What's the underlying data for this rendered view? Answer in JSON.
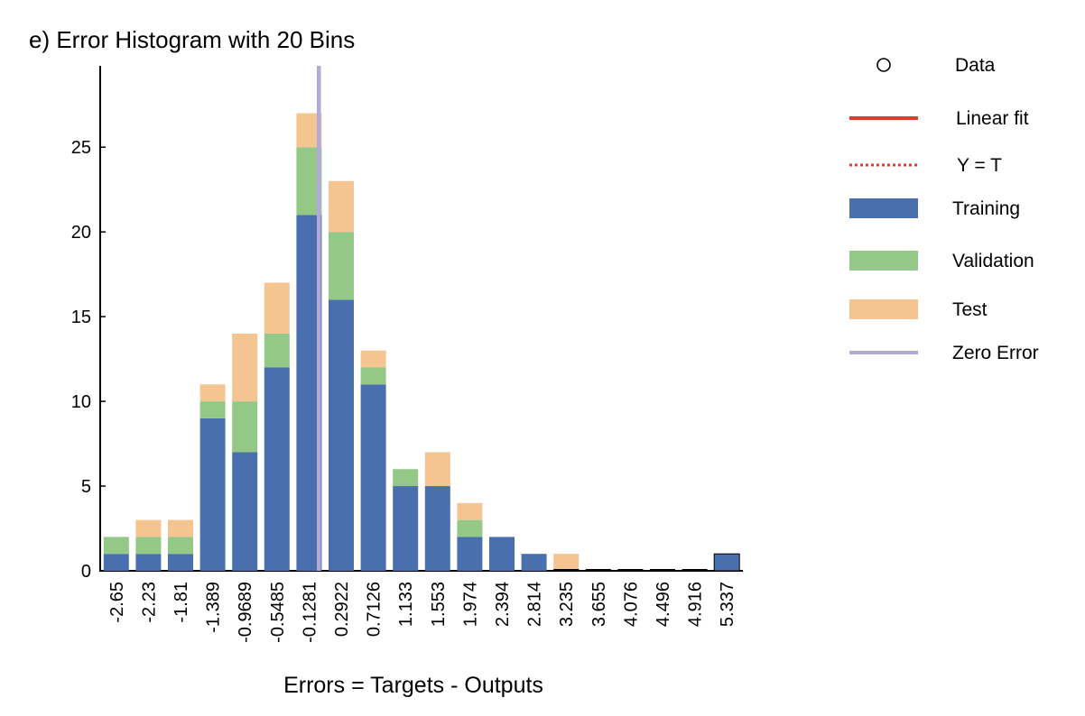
{
  "chart_data": {
    "type": "bar",
    "stacked": true,
    "title": "e) Error Histogram with 20 Bins",
    "xlabel": "Errors = Targets - Outputs",
    "ylabel": "",
    "ylim": [
      0,
      29.8
    ],
    "yticks": [
      0,
      5,
      10,
      15,
      20,
      25
    ],
    "grid": false,
    "legend_position": "right",
    "categories": [
      "-2.65",
      "-2.23",
      "-1.81",
      "-1.389",
      "-0.9689",
      "-0.5485",
      "-0.1281",
      "0.2922",
      "0.7126",
      "1.133",
      "1.553",
      "1.974",
      "2.394",
      "2.814",
      "3.235",
      "3.655",
      "4.076",
      "4.496",
      "4.916",
      "5.337"
    ],
    "series": [
      {
        "name": "Training",
        "color": "#4a6fae",
        "values": [
          1,
          1,
          1,
          9,
          7,
          12,
          21,
          16,
          11,
          5,
          5,
          2,
          2,
          1,
          0,
          0,
          0,
          0,
          0,
          1
        ]
      },
      {
        "name": "Validation",
        "color": "#93c887",
        "values": [
          1,
          1,
          1,
          1,
          3,
          2,
          4,
          4,
          1,
          1,
          0,
          1,
          0,
          0,
          0,
          0,
          0,
          0,
          0,
          0
        ]
      },
      {
        "name": "Test",
        "color": "#f4c491",
        "values": [
          0,
          1,
          1,
          1,
          4,
          3,
          2,
          3,
          1,
          0,
          2,
          1,
          0,
          0,
          1,
          0,
          0,
          0,
          0,
          0
        ]
      }
    ],
    "zero_error": {
      "name": "Zero Error",
      "x": 0,
      "color": "#b3a9d6"
    },
    "legend": [
      {
        "label": "Data",
        "marker": "circle"
      },
      {
        "label": "Linear fit",
        "marker": "line",
        "color": "#e43a2c"
      },
      {
        "label": "Y = T",
        "marker": "dotted-line",
        "color": "#e43a2c"
      },
      {
        "label": "Training",
        "marker": "box",
        "color": "#4a6fae"
      },
      {
        "label": "Validation",
        "marker": "box",
        "color": "#93c887"
      },
      {
        "label": "Test",
        "marker": "box",
        "color": "#f4c491"
      },
      {
        "label": "Zero Error",
        "marker": "line",
        "color": "#b3a9d6"
      }
    ]
  }
}
